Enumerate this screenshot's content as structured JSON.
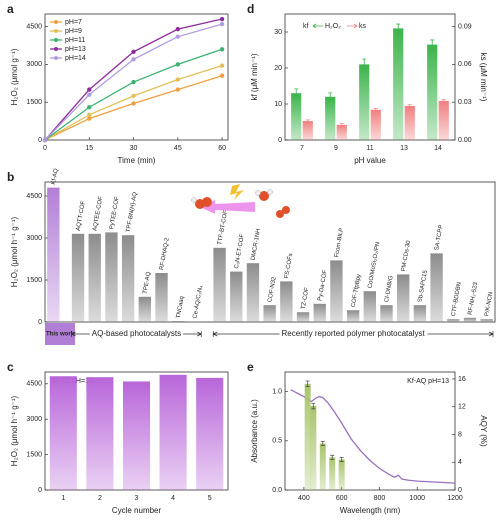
{
  "chart_data": [
    {
      "type": "line",
      "panel_label": "a",
      "xlabel": "Time (min)",
      "ylabel": "H₂O₂ (μmol g⁻¹)",
      "x": [
        0,
        15,
        30,
        45,
        60
      ],
      "xlim": [
        0,
        62
      ],
      "xticks": [
        0,
        15,
        30,
        45,
        60
      ],
      "ylim": [
        0,
        5000
      ],
      "yticks": [
        0,
        1500,
        3000,
        4500
      ],
      "legend": "upper left",
      "series": [
        {
          "name": "pH=7",
          "color": "#f0a040",
          "values": [
            0,
            850,
            1450,
            2000,
            2550
          ]
        },
        {
          "name": "pH=9",
          "color": "#e3c05a",
          "values": [
            0,
            1000,
            1750,
            2400,
            2950
          ]
        },
        {
          "name": "pH=11",
          "color": "#3cb371",
          "values": [
            0,
            1300,
            2300,
            3000,
            3600
          ]
        },
        {
          "name": "pH=13",
          "color": "#8e2c9c",
          "values": [
            0,
            2000,
            3500,
            4400,
            4800
          ]
        },
        {
          "name": "pH=14",
          "color": "#b19ce0",
          "values": [
            0,
            1800,
            3200,
            4100,
            4600
          ]
        }
      ]
    },
    {
      "type": "bar",
      "panel_label": "d",
      "xlabel": "pH value",
      "ylabel": "kf (μM min⁻¹)",
      "y2label": "ks (μM min⁻¹)",
      "legend_center": "H₂O₂",
      "categories": [
        "7",
        "9",
        "11",
        "13",
        "14"
      ],
      "ylim": [
        0,
        35
      ],
      "yticks": [
        0,
        10,
        20,
        30
      ],
      "y2lim": [
        0,
        0.1
      ],
      "y2ticks": [
        {
          "value": 0,
          "label": "0.00"
        },
        0.03,
        0.06,
        0.09
      ],
      "series": [
        {
          "name": "kf",
          "color": "#3cb44b",
          "values": [
            13,
            12,
            21,
            31,
            26.5
          ],
          "errors": [
            1.2,
            1.1,
            1.5,
            1.2,
            1.3
          ]
        },
        {
          "name": "ks",
          "color": "#f08080",
          "axis": "y2",
          "values": [
            0.015,
            0.012,
            0.024,
            0.027,
            0.031
          ],
          "errors": [
            0.001,
            0.001,
            0.001,
            0.001,
            0.001
          ]
        }
      ]
    },
    {
      "type": "bar",
      "panel_label": "b",
      "ylabel": "H₂O₂ (μmol h⁻¹ g⁻¹)",
      "ylim": [
        0,
        5000
      ],
      "yticks": [
        0,
        1500,
        3000,
        4500
      ],
      "categories": [
        "Kf-AQ",
        "AQTT-COF",
        "AQTEE-COF",
        "PyTEE-COF",
        "TPF-BN(H)-AQ",
        "TPE-AQ",
        "RF-DHAQ-2",
        "TNCaaq",
        "Ce-AQ/C₃N₄",
        "TTF-BT-COF",
        "C₃N-ET-COF",
        "DMCR-1NH",
        "COF-N32",
        "FS-COFs",
        "TZ-COF",
        "Py-Da-COF",
        "Fcom-BILP",
        "COF-TfpBpy",
        "CoO/MoSi₂O₂/PN",
        "CI-DNB/G",
        "PM-CDs-30",
        "Sb-SAPC15",
        "SA-TCPP",
        "CTF-BDDBN",
        "RF-NH₂-523",
        "P/K-NCN"
      ],
      "values": [
        4800,
        3150,
        3150,
        3200,
        3100,
        900,
        1750,
        30,
        20,
        2650,
        1800,
        2100,
        600,
        1450,
        350,
        650,
        2200,
        420,
        1100,
        600,
        1700,
        600,
        2450,
        100,
        150,
        100
      ],
      "colors": [
        "#b27fd6",
        "#8c8c8c",
        "#8c8c8c",
        "#8c8c8c",
        "#8c8c8c",
        "#8c8c8c",
        "#8c8c8c",
        "#8c8c8c",
        "#8c8c8c",
        "#8c8c8c",
        "#8c8c8c",
        "#8c8c8c",
        "#8c8c8c",
        "#8c8c8c",
        "#8c8c8c",
        "#8c8c8c",
        "#8c8c8c",
        "#8c8c8c",
        "#8c8c8c",
        "#8c8c8c",
        "#8c8c8c",
        "#8c8c8c",
        "#8c8c8c",
        "#8c8c8c",
        "#8c8c8c",
        "#8c8c8c"
      ],
      "groups": [
        {
          "label": "This work",
          "span": [
            0,
            0
          ]
        },
        {
          "label": "AQ-based photocatalysts",
          "span": [
            1,
            8
          ]
        },
        {
          "label": "Recently reported polymer photocatalyst",
          "span": [
            9,
            25
          ]
        }
      ]
    },
    {
      "type": "bar",
      "panel_label": "c",
      "xlabel": "Cycle number",
      "ylabel": "H₂O₂ (μmol h⁻¹ g⁻¹)",
      "annotation": "Kf-AQ pH=13",
      "categories": [
        "1",
        "2",
        "3",
        "4",
        "5"
      ],
      "values": [
        4820,
        4780,
        4600,
        4880,
        4750
      ],
      "color": "#b866d9",
      "ylim": [
        0,
        5000
      ],
      "yticks": [
        0,
        1500,
        3000,
        4500
      ]
    },
    {
      "type": "line",
      "panel_label": "e",
      "xlabel": "Wavelength (nm)",
      "ylabel": "Absorbance (a.u.)",
      "y2label": "AQY (%)",
      "annotation": "Kf-AQ pH=13",
      "xlim": [
        300,
        1200
      ],
      "xticks": [
        400,
        600,
        800,
        1000,
        1200
      ],
      "ylim": [
        0,
        1.2
      ],
      "yticks": [
        {
          "value": 0,
          "label": "0.0"
        },
        0.5,
        {
          "value": 1,
          "label": "1.0"
        }
      ],
      "y2lim": [
        0,
        17
      ],
      "y2ticks": [
        0,
        4,
        8,
        12,
        16
      ],
      "series": [
        {
          "name": "Absorbance",
          "color": "#9b6fc1",
          "x": [
            330,
            350,
            380,
            400,
            420,
            440,
            460,
            480,
            500,
            530,
            560,
            600,
            650,
            700,
            750,
            800,
            850,
            880,
            900,
            920,
            950,
            1000,
            1100,
            1200
          ],
          "values": [
            1.02,
            1.0,
            0.97,
            0.95,
            0.92,
            0.9,
            0.93,
            0.95,
            0.94,
            0.88,
            0.8,
            0.68,
            0.52,
            0.4,
            0.3,
            0.22,
            0.16,
            0.13,
            0.15,
            0.11,
            0.1,
            0.09,
            0.08,
            0.07
          ]
        },
        {
          "name": "AQY",
          "type": "bar",
          "axis": "y2",
          "color": "#a8c46a",
          "x": [
            420,
            450,
            500,
            550,
            600
          ],
          "values": [
            15.3,
            12.1,
            6.7,
            4.7,
            4.4
          ],
          "errors": [
            0.4,
            0.4,
            0.3,
            0.3,
            0.3
          ]
        }
      ]
    }
  ]
}
